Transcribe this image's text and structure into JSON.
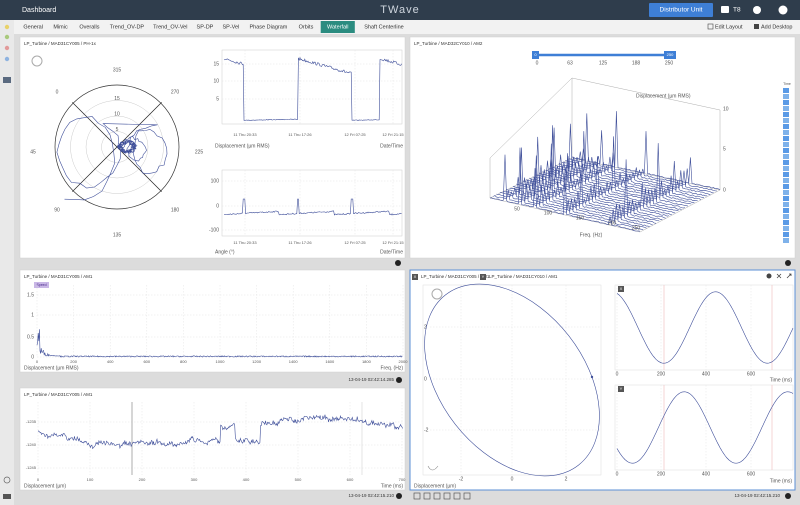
{
  "header": {
    "menu": "Dashboard",
    "logo": "TWave",
    "unit": "Distributor Unit",
    "user": "T8"
  },
  "tabs": [
    "General",
    "Mimic",
    "Overalls",
    "Trend_OV-DP",
    "Trend_OV-Vel",
    "SP-DP",
    "SP-Vel",
    "Phase Diagram",
    "Orbits",
    "Waterfall",
    "Shaft Centerline"
  ],
  "toolbar": {
    "edit": "Edit Layout",
    "add": "Add Desktop"
  },
  "panels": [
    {
      "title": "LP_Turbine / MAD31CY005 / PH-1x",
      "polar_angles": [
        315,
        270,
        225,
        180,
        135,
        90,
        45,
        0
      ],
      "polar_radii": [
        15,
        10,
        5
      ],
      "trend_amplitude": {
        "yticks": [
          15,
          10,
          5
        ],
        "xticks": [
          "11 Thu 20:33",
          "11 Thu 17:26",
          "12 Fri 07:25",
          "12 Fri 21:15"
        ],
        "ylabel": "Displacement (µm RMS)",
        "xlabel": "Date/Time"
      },
      "trend_phase": {
        "yticks": [
          100,
          0,
          -100
        ],
        "xticks": [
          "11 Thu 20:33",
          "11 Thu 17:26",
          "12 Fri 07:25",
          "12 Fri 21:15"
        ],
        "ylabel": "Angle (°)",
        "xlabel": "Date/Time"
      }
    },
    {
      "title": "LP_Turbine / MAD32CY010 / AM2",
      "slider_ticks": [
        0,
        63,
        125,
        188,
        250
      ],
      "slider_min": 0,
      "slider_max": 250,
      "zlabel": "Displacement (µm RMS)",
      "zticks": [
        10,
        5,
        0
      ],
      "freq_ticks": [
        50,
        100,
        150,
        200,
        250
      ],
      "xlabel": "Freq. (Hz)",
      "time_label": "Time"
    },
    {
      "title": "LP_Turbine / MAD31CY005 / AM1",
      "tag": "Speed",
      "yticks": [
        1.5,
        1,
        0.5,
        0
      ],
      "xticks": [
        0,
        200,
        400,
        600,
        800,
        1000,
        1200,
        1400,
        1600,
        1800,
        2000
      ],
      "ylabel": "Displacement (µm RMS)",
      "xlabel": "Freq. (Hz)",
      "timestamp": "13-04-19 02:42:14.285"
    },
    {
      "title": "LP_Turbine / MAD31CY005 / AM1",
      "yticks": [
        -1235,
        -1240,
        -1245
      ],
      "xticks": [
        0,
        100,
        200,
        300,
        400,
        500,
        600,
        700
      ],
      "ylabel": "Displacement (µm)",
      "xlabel": "Time (ms)",
      "timestamp": "13-04-19 02:42:15.210"
    },
    {
      "titles": [
        {
          "badge": "X",
          "text": "LP_Turbine / MAD31CY005 / AM1"
        },
        {
          "badge": "Y",
          "text": "LP_Turbine / MAD31CY010 / AM1"
        }
      ],
      "orbit_yticks": [
        2,
        0,
        -2
      ],
      "orbit_xticks": [
        -2,
        0,
        2
      ],
      "orbit_label": "Displacement (µm)",
      "wave_x": {
        "badge": "X",
        "xticks": [
          0,
          200,
          400,
          600
        ],
        "xlabel": "Time (ms)"
      },
      "wave_y": {
        "badge": "Y",
        "xticks": [
          0,
          200,
          400,
          600
        ],
        "xlabel": "Time (ms)"
      },
      "timestamp": "13-04-19 02:42:15.210"
    }
  ]
}
